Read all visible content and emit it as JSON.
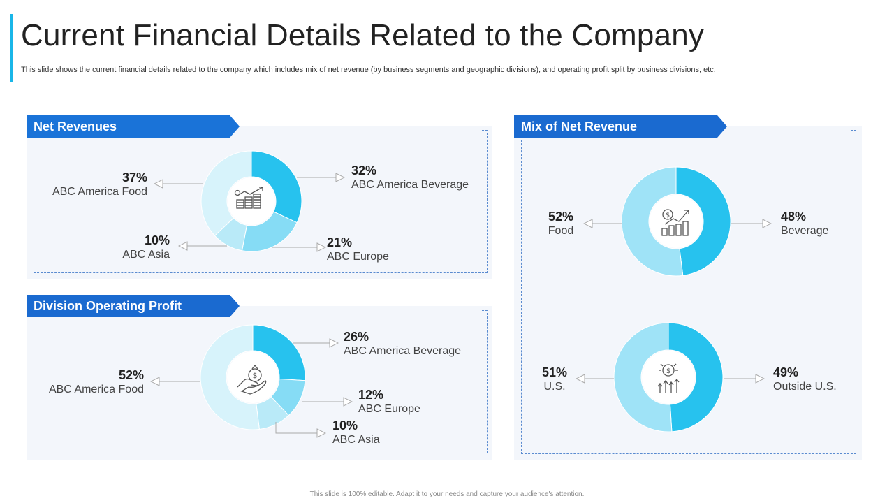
{
  "header": {
    "title": "Current Financial Details Related to the Company",
    "subtitle": "This slide shows the current financial details related to the company which includes mix of net revenue (by business segments and geographic divisions), and operating profit split by business divisions, etc."
  },
  "footer": {
    "text": "This slide is 100% editable. Adapt it to your needs and capture your audience's attention."
  },
  "colors": {
    "accent": "#19b6e8",
    "banner": "#1a6ad0",
    "panel_bg": "#f3f6fb"
  },
  "chart_data": [
    {
      "id": "net_revenues",
      "type": "pie",
      "title": "Net Revenues",
      "icon": "coins-growth-icon",
      "series": [
        {
          "name": "ABC America Beverage",
          "pct_label": "32%",
          "value": 32,
          "color": "#27c2ee"
        },
        {
          "name": "ABC Europe",
          "pct_label": "21%",
          "value": 21,
          "color": "#86dcf5"
        },
        {
          "name": "ABC Asia",
          "pct_label": "10%",
          "value": 10,
          "color": "#b9eaf8"
        },
        {
          "name": "ABC America Food",
          "pct_label": "37%",
          "value": 37,
          "color": "#d7f3fb"
        }
      ]
    },
    {
      "id": "division_operating_profit",
      "type": "pie",
      "title": "Division Operating Profit",
      "icon": "money-hand-icon",
      "series": [
        {
          "name": "ABC America Beverage",
          "pct_label": "26%",
          "value": 26,
          "color": "#27c2ee"
        },
        {
          "name": "ABC Europe",
          "pct_label": "12%",
          "value": 12,
          "color": "#86dcf5"
        },
        {
          "name": "ABC Asia",
          "pct_label": "10%",
          "value": 10,
          "color": "#b9eaf8"
        },
        {
          "name": "ABC America Food",
          "pct_label": "52%",
          "value": 52,
          "color": "#d7f3fb"
        }
      ]
    },
    {
      "id": "mix_business",
      "type": "pie",
      "title": "Mix of Net Revenue",
      "icon": "money-chart-icon",
      "series": [
        {
          "name": "Beverage",
          "pct_label": "48%",
          "value": 48,
          "color": "#27c2ee"
        },
        {
          "name": "Food",
          "pct_label": "52%",
          "value": 52,
          "color": "#9fe3f7"
        }
      ]
    },
    {
      "id": "mix_geography",
      "type": "pie",
      "title": "",
      "icon": "dollar-growth-icon",
      "series": [
        {
          "name": "Outside U.S.",
          "pct_label": "49%",
          "value": 49,
          "color": "#27c2ee"
        },
        {
          "name": "U.S.",
          "pct_label": "51%",
          "value": 51,
          "color": "#9fe3f7"
        }
      ]
    }
  ]
}
